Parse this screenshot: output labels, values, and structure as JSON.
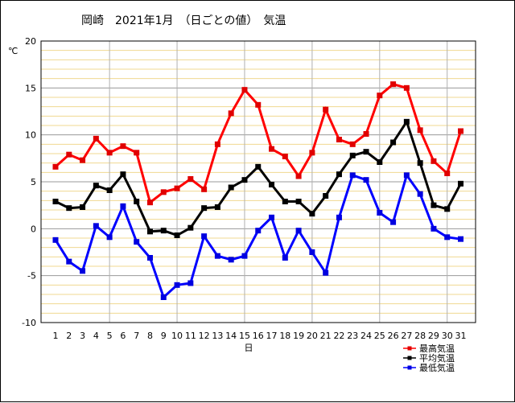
{
  "chart_data": {
    "type": "line",
    "title": "岡崎　2021年1月　（日ごとの値）　気温",
    "ylabel": "℃",
    "xlabel": "日",
    "ylim": [
      -10,
      20
    ],
    "yticks": [
      -10,
      -5,
      0,
      5,
      10,
      15,
      20
    ],
    "x": [
      1,
      2,
      3,
      4,
      5,
      6,
      7,
      8,
      9,
      10,
      11,
      12,
      13,
      14,
      15,
      16,
      17,
      18,
      19,
      20,
      21,
      22,
      23,
      24,
      25,
      26,
      27,
      28,
      29,
      30,
      31
    ],
    "series": [
      {
        "name": "最高気温",
        "color": "#ff0000",
        "marker_color": "#e00000",
        "values": [
          6.6,
          7.9,
          7.3,
          9.6,
          8.1,
          8.8,
          8.1,
          2.8,
          3.9,
          4.3,
          5.3,
          4.2,
          9.0,
          12.3,
          14.8,
          13.2,
          8.5,
          7.7,
          5.6,
          8.1,
          12.7,
          9.5,
          9.0,
          10.1,
          14.2,
          15.4,
          15.0,
          10.5,
          7.2,
          5.9,
          10.4
        ]
      },
      {
        "name": "平均気温",
        "color": "#000000",
        "marker_color": "#000000",
        "values": [
          2.9,
          2.2,
          2.3,
          4.6,
          4.1,
          5.8,
          2.9,
          -0.3,
          -0.2,
          -0.7,
          0.1,
          2.2,
          2.3,
          4.4,
          5.2,
          6.6,
          4.7,
          2.9,
          2.9,
          1.6,
          3.5,
          5.8,
          7.8,
          8.2,
          7.1,
          9.2,
          11.4,
          7.0,
          2.5,
          2.1,
          4.8
        ]
      },
      {
        "name": "最低気温",
        "color": "#0000ff",
        "marker_color": "#0000e0",
        "values": [
          -1.2,
          -3.5,
          -4.5,
          0.3,
          -0.9,
          2.4,
          -1.4,
          -3.1,
          -7.3,
          -6.0,
          -5.8,
          -0.8,
          -2.9,
          -3.3,
          -2.9,
          -0.2,
          1.2,
          -3.1,
          -0.2,
          -2.5,
          -4.7,
          1.2,
          5.7,
          5.2,
          1.7,
          0.7,
          5.7,
          3.7,
          0.0,
          -0.9,
          -1.1
        ]
      }
    ],
    "grid": true,
    "grid_colors": {
      "major": "#999999",
      "minor": "#f0d890"
    },
    "legend_position": "bottom-right"
  }
}
